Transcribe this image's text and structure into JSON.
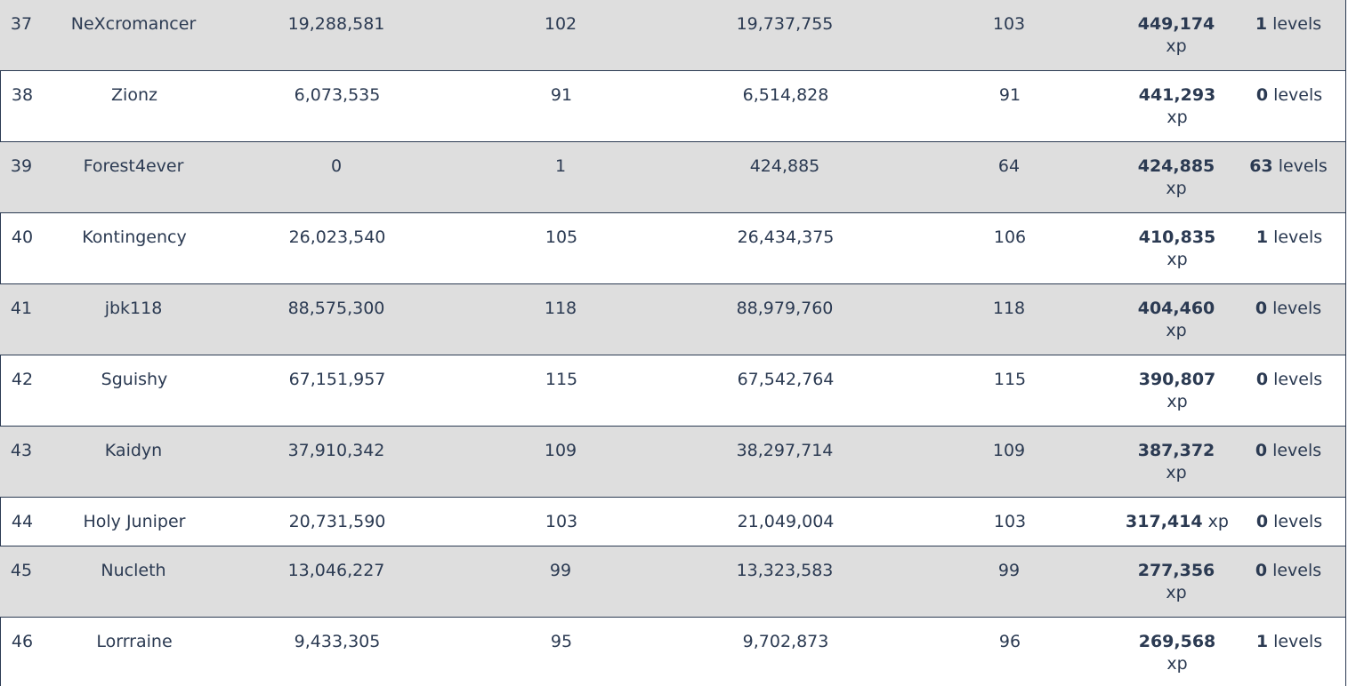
{
  "rows": [
    {
      "rank": "37",
      "name": "NeXcromancer",
      "start_xp": "19,288,581",
      "start_level": "102",
      "end_xp": "19,737,755",
      "end_level": "103",
      "gained_xp": "449,174",
      "xp_unit": "xp",
      "gained_levels": "1",
      "levels_unit": "levels"
    },
    {
      "rank": "38",
      "name": "Zionz",
      "start_xp": "6,073,535",
      "start_level": "91",
      "end_xp": "6,514,828",
      "end_level": "91",
      "gained_xp": "441,293",
      "xp_unit": "xp",
      "gained_levels": "0",
      "levels_unit": "levels"
    },
    {
      "rank": "39",
      "name": "Forest4ever",
      "start_xp": "0",
      "start_level": "1",
      "end_xp": "424,885",
      "end_level": "64",
      "gained_xp": "424,885",
      "xp_unit": "xp",
      "gained_levels": "63",
      "levels_unit": "levels"
    },
    {
      "rank": "40",
      "name": "Kontingency",
      "start_xp": "26,023,540",
      "start_level": "105",
      "end_xp": "26,434,375",
      "end_level": "106",
      "gained_xp": "410,835",
      "xp_unit": "xp",
      "gained_levels": "1",
      "levels_unit": "levels"
    },
    {
      "rank": "41",
      "name": "jbk118",
      "start_xp": "88,575,300",
      "start_level": "118",
      "end_xp": "88,979,760",
      "end_level": "118",
      "gained_xp": "404,460",
      "xp_unit": "xp",
      "gained_levels": "0",
      "levels_unit": "levels"
    },
    {
      "rank": "42",
      "name": "Sguishy",
      "start_xp": "67,151,957",
      "start_level": "115",
      "end_xp": "67,542,764",
      "end_level": "115",
      "gained_xp": "390,807",
      "xp_unit": "xp",
      "gained_levels": "0",
      "levels_unit": "levels"
    },
    {
      "rank": "43",
      "name": "Kaidyn",
      "start_xp": "37,910,342",
      "start_level": "109",
      "end_xp": "38,297,714",
      "end_level": "109",
      "gained_xp": "387,372",
      "xp_unit": "xp",
      "gained_levels": "0",
      "levels_unit": "levels"
    },
    {
      "rank": "44",
      "name": "Holy Juniper",
      "start_xp": "20,731,590",
      "start_level": "103",
      "end_xp": "21,049,004",
      "end_level": "103",
      "gained_xp": "317,414",
      "xp_unit": "xp",
      "gained_levels": "0",
      "levels_unit": "levels"
    },
    {
      "rank": "45",
      "name": "Nucleth",
      "start_xp": "13,046,227",
      "start_level": "99",
      "end_xp": "13,323,583",
      "end_level": "99",
      "gained_xp": "277,356",
      "xp_unit": "xp",
      "gained_levels": "0",
      "levels_unit": "levels"
    },
    {
      "rank": "46",
      "name": "Lorrraine",
      "start_xp": "9,433,305",
      "start_level": "95",
      "end_xp": "9,702,873",
      "end_level": "96",
      "gained_xp": "269,568",
      "xp_unit": "xp",
      "gained_levels": "1",
      "levels_unit": "levels"
    }
  ],
  "colors": {
    "row_shaded": "#dedede",
    "row_plain": "#ffffff",
    "text": "#2b3a52",
    "border": "#2b3a52"
  }
}
